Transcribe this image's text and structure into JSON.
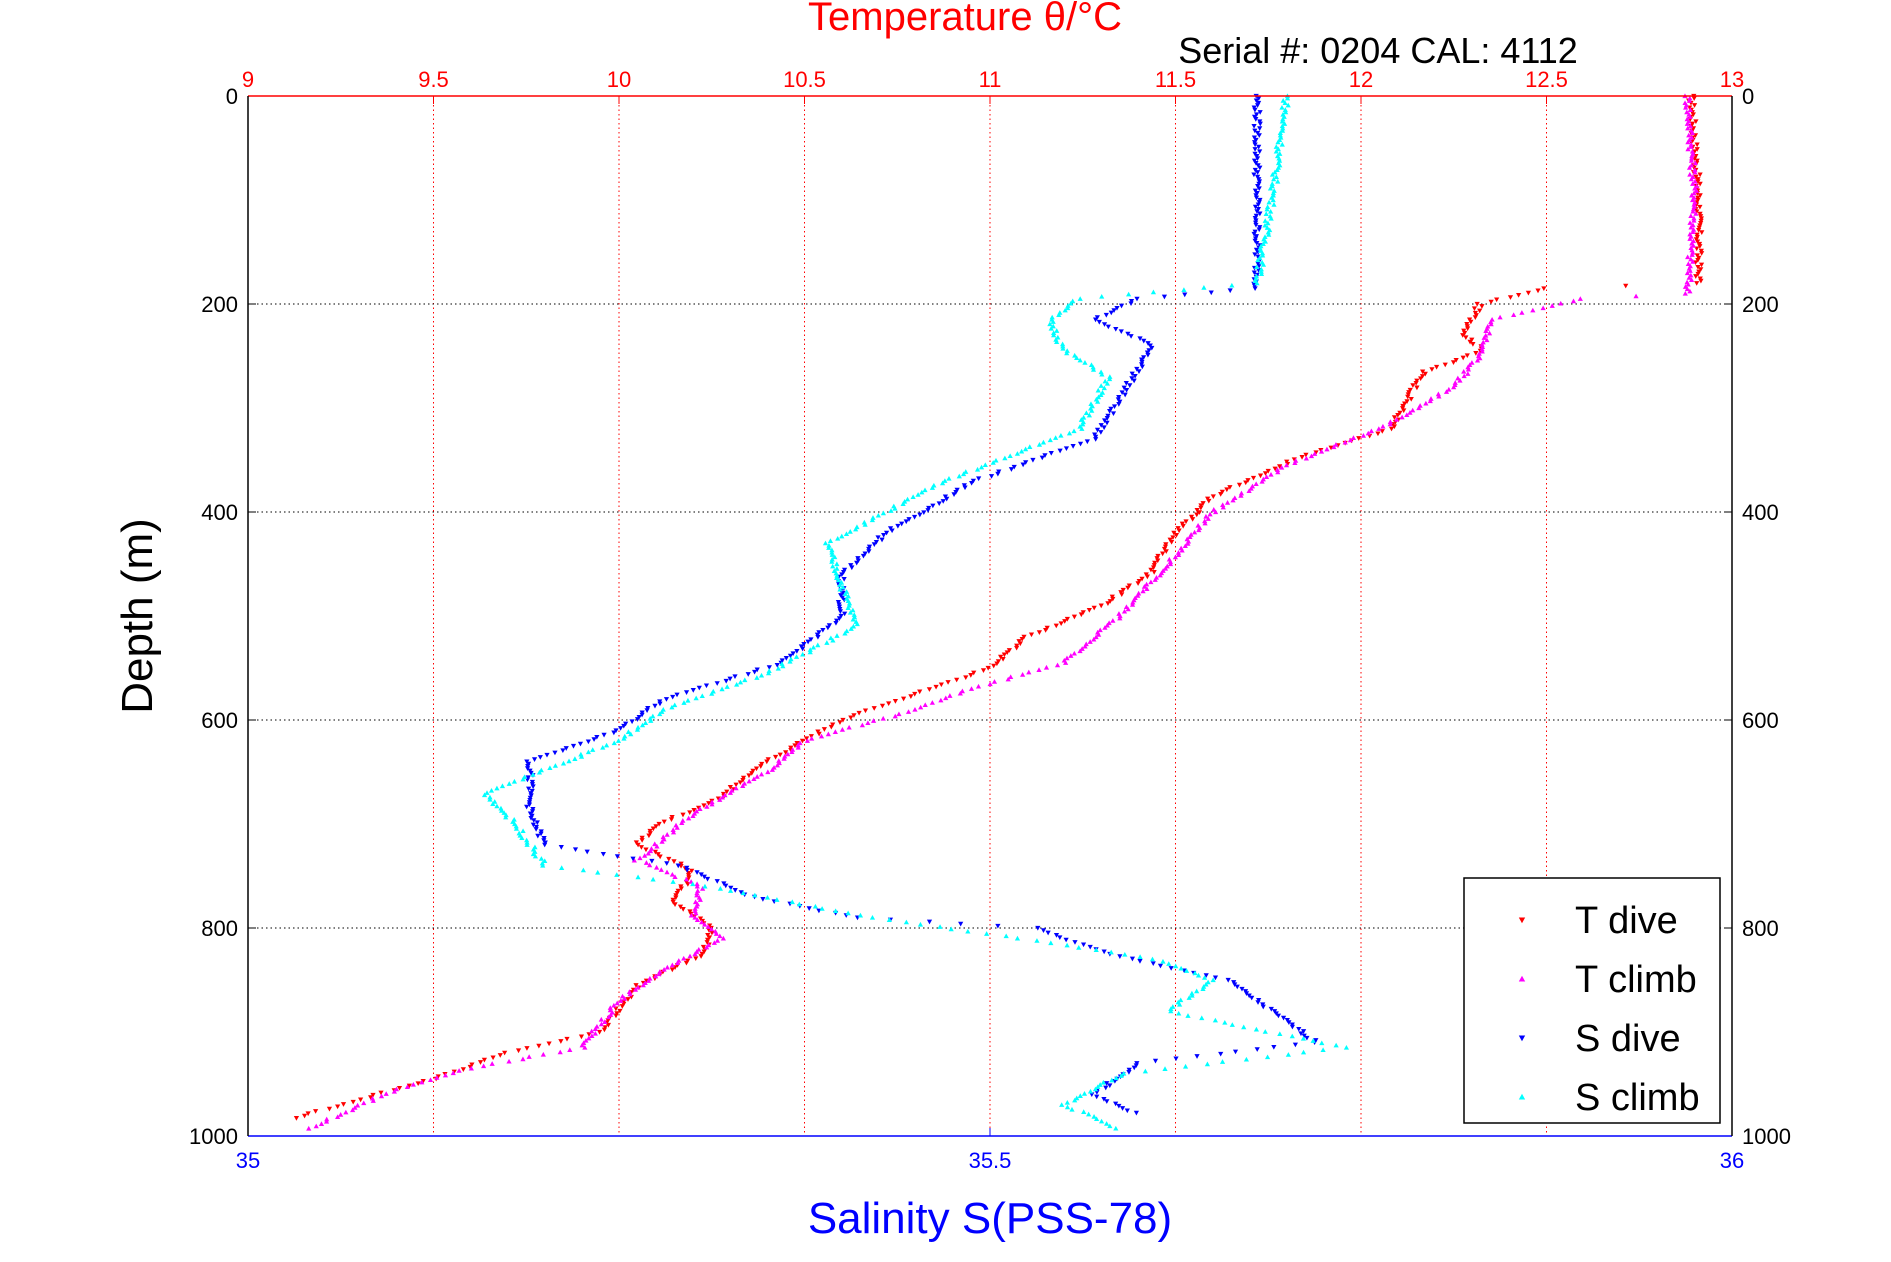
{
  "chart_data": {
    "type": "scatter",
    "title": "Temperature θ/°C",
    "subtitle": "Serial #: 0204  CAL: 4112",
    "ylabel": "Depth (m)",
    "xlabel": "Salinity S(PSS-78)",
    "ylim": [
      0,
      1000
    ],
    "y_reversed": true,
    "y_ticks": [
      "0",
      "200",
      "400",
      "600",
      "800",
      "1000"
    ],
    "x_top": {
      "label": "Temperature θ/°C",
      "lim": [
        9,
        13
      ],
      "ticks": [
        "9",
        "9.5",
        "10",
        "10.5",
        "11",
        "11.5",
        "12",
        "12.5",
        "13"
      ]
    },
    "x_bottom": {
      "label": "Salinity S(PSS-78)",
      "lim": [
        35,
        36
      ],
      "ticks": [
        "35",
        "35.5",
        "36"
      ]
    },
    "grid": true,
    "legend_position": "bottom-right",
    "colors": {
      "temperature_axis": "#ff0000",
      "salinity_axis": "#0000ff"
    },
    "series": [
      {
        "name": "T dive",
        "axis": "temperature",
        "color": "#ff0000",
        "marker": "triangle-down",
        "points": [
          [
            12.89,
            0
          ],
          [
            12.91,
            100
          ],
          [
            12.91,
            180
          ],
          [
            12.5,
            185
          ],
          [
            12.32,
            200
          ],
          [
            12.28,
            230
          ],
          [
            12.33,
            245
          ],
          [
            12.17,
            265
          ],
          [
            12.08,
            320
          ],
          [
            11.85,
            345
          ],
          [
            11.6,
            385
          ],
          [
            11.5,
            420
          ],
          [
            11.43,
            460
          ],
          [
            11.3,
            490
          ],
          [
            11.1,
            520
          ],
          [
            11.0,
            550
          ],
          [
            10.8,
            575
          ],
          [
            10.6,
            600
          ],
          [
            10.4,
            640
          ],
          [
            10.25,
            680
          ],
          [
            10.1,
            700
          ],
          [
            10.05,
            720
          ],
          [
            10.2,
            745
          ],
          [
            10.15,
            775
          ],
          [
            10.25,
            800
          ],
          [
            10.23,
            825
          ],
          [
            10.05,
            855
          ],
          [
            9.95,
            900
          ],
          [
            9.7,
            920
          ],
          [
            9.5,
            945
          ],
          [
            9.3,
            965
          ],
          [
            9.1,
            985
          ]
        ]
      },
      {
        "name": "T climb",
        "axis": "temperature",
        "color": "#ff00ff",
        "marker": "triangle-up",
        "points": [
          [
            12.88,
            0
          ],
          [
            12.9,
            100
          ],
          [
            12.88,
            190
          ],
          [
            12.6,
            195
          ],
          [
            12.35,
            215
          ],
          [
            12.32,
            250
          ],
          [
            12.25,
            280
          ],
          [
            12.05,
            320
          ],
          [
            11.8,
            355
          ],
          [
            11.6,
            400
          ],
          [
            11.48,
            450
          ],
          [
            11.35,
            500
          ],
          [
            11.2,
            545
          ],
          [
            10.95,
            570
          ],
          [
            10.8,
            590
          ],
          [
            10.5,
            620
          ],
          [
            10.4,
            650
          ],
          [
            10.2,
            690
          ],
          [
            10.05,
            735
          ],
          [
            10.22,
            760
          ],
          [
            10.2,
            790
          ],
          [
            10.28,
            810
          ],
          [
            10.12,
            840
          ],
          [
            10.0,
            870
          ],
          [
            9.9,
            915
          ],
          [
            9.6,
            935
          ],
          [
            9.4,
            955
          ],
          [
            9.15,
            995
          ]
        ]
      },
      {
        "name": "S dive",
        "axis": "salinity",
        "color": "#0000ff",
        "marker": "triangle-down",
        "points": [
          [
            35.68,
            0
          ],
          [
            35.68,
            100
          ],
          [
            35.68,
            185
          ],
          [
            35.6,
            195
          ],
          [
            35.57,
            215
          ],
          [
            35.61,
            240
          ],
          [
            35.59,
            285
          ],
          [
            35.57,
            330
          ],
          [
            35.49,
            370
          ],
          [
            35.43,
            420
          ],
          [
            35.4,
            460
          ],
          [
            35.4,
            500
          ],
          [
            35.36,
            545
          ],
          [
            35.28,
            580
          ],
          [
            35.25,
            610
          ],
          [
            35.19,
            640
          ],
          [
            35.19,
            690
          ],
          [
            35.2,
            720
          ],
          [
            35.29,
            740
          ],
          [
            35.34,
            770
          ],
          [
            35.41,
            790
          ],
          [
            35.53,
            800
          ],
          [
            35.58,
            825
          ],
          [
            35.66,
            850
          ],
          [
            35.69,
            880
          ],
          [
            35.72,
            910
          ],
          [
            35.6,
            930
          ],
          [
            35.57,
            960
          ],
          [
            35.6,
            980
          ]
        ]
      },
      {
        "name": "S climb",
        "axis": "salinity",
        "color": "#00ffff",
        "marker": "triangle-up",
        "points": [
          [
            35.7,
            0
          ],
          [
            35.69,
            100
          ],
          [
            35.68,
            180
          ],
          [
            35.56,
            195
          ],
          [
            35.54,
            215
          ],
          [
            35.55,
            245
          ],
          [
            35.58,
            270
          ],
          [
            35.56,
            320
          ],
          [
            35.47,
            370
          ],
          [
            35.39,
            430
          ],
          [
            35.4,
            470
          ],
          [
            35.41,
            510
          ],
          [
            35.35,
            555
          ],
          [
            35.28,
            590
          ],
          [
            35.25,
            620
          ],
          [
            35.16,
            670
          ],
          [
            35.18,
            700
          ],
          [
            35.2,
            740
          ],
          [
            35.31,
            760
          ],
          [
            35.42,
            790
          ],
          [
            35.52,
            810
          ],
          [
            35.61,
            830
          ],
          [
            35.65,
            850
          ],
          [
            35.62,
            880
          ],
          [
            35.74,
            915
          ],
          [
            35.59,
            940
          ],
          [
            35.55,
            970
          ],
          [
            35.59,
            995
          ]
        ]
      }
    ],
    "legend": [
      "T dive",
      "T climb",
      "S dive",
      "S climb"
    ]
  }
}
